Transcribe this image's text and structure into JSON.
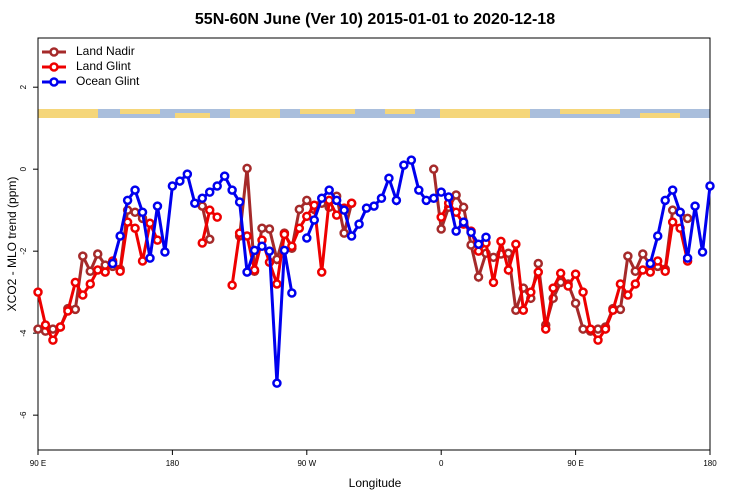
{
  "chart_data": {
    "type": "line",
    "title": "55N-60N June (Ver 10)   2015-01-01 to 2020-12-18",
    "x_label": "Longitude",
    "y_label": "XCO2 - MLO trend (ppm)",
    "legend": "top-left",
    "xlim": [
      90,
      540
    ],
    "xticks": [
      {
        "value": 90,
        "label": "90 E"
      },
      180,
      {
        "value": 270,
        "label": "90 W"
      },
      {
        "value": 360,
        "label": "0"
      },
      {
        "value": 450,
        "label": "90 E"
      },
      {
        "value": 540,
        "label": "180"
      }
    ],
    "ylim": [
      -6.85,
      3.2
    ],
    "yticks": [
      2,
      0,
      -2,
      -4,
      -6
    ],
    "x": [
      90,
      95,
      100,
      105,
      110,
      115,
      120,
      125,
      130,
      135,
      140,
      145,
      150,
      155,
      160,
      165,
      170,
      175,
      180,
      185,
      190,
      195,
      200,
      205,
      210,
      215,
      220,
      225,
      230,
      235,
      240,
      245,
      250,
      255,
      260,
      265,
      270,
      275,
      280,
      285,
      290,
      295,
      300,
      305,
      310,
      315,
      320,
      325,
      330,
      335,
      340,
      345,
      350,
      355,
      360,
      365,
      370,
      375,
      380,
      385,
      390,
      395,
      400,
      405,
      410,
      415,
      420,
      425,
      430,
      435,
      440,
      445,
      450,
      455,
      460,
      465,
      470,
      475,
      480,
      485,
      490,
      495,
      500,
      505,
      510,
      515,
      520,
      525,
      530,
      535,
      540
    ],
    "series": [
      {
        "name": "Land Nadir",
        "color": "#a52a2a",
        "values": [
          -3.9,
          -3.95,
          -3.9,
          -3.85,
          -3.4,
          -3.42,
          -2.12,
          -2.49,
          -2.07,
          -2.34,
          -2.37,
          -2.44,
          -1.0,
          -1.05,
          -1.2,
          null,
          null,
          null,
          null,
          null,
          null,
          null,
          -0.9,
          -1.71,
          null,
          null,
          null,
          -1.63,
          0.02,
          -2.49,
          -1.44,
          -1.46,
          -2.2,
          -1.56,
          -1.93,
          -0.98,
          -0.76,
          -0.98,
          -0.83,
          -0.93,
          -0.66,
          -1.56,
          -0.83,
          null,
          null,
          null,
          null,
          null,
          null,
          null,
          null,
          null,
          null,
          0.0,
          -1.46,
          -0.93,
          -0.63,
          -0.93,
          -1.85,
          -2.63,
          -2.05,
          -2.15,
          -2.07,
          -2.05,
          -3.44,
          -2.9,
          -3.15,
          -2.3,
          -3.8,
          -3.15,
          -2.76,
          -2.8,
          -3.27,
          -3.9,
          -3.95,
          -3.9,
          -3.85,
          -3.4,
          -3.42,
          -2.12,
          -2.49,
          -2.07,
          -2.34,
          -2.37,
          -2.44,
          -1.0,
          -1.05,
          -1.2,
          null,
          null,
          null
        ]
      },
      {
        "name": "Land Glint",
        "color": "#ee0000",
        "values": [
          -3.0,
          -3.8,
          -4.17,
          -3.85,
          -3.46,
          -2.76,
          -3.07,
          -2.8,
          -2.46,
          -2.51,
          -2.24,
          -2.49,
          -1.29,
          -1.44,
          -2.24,
          -1.32,
          -1.73,
          null,
          null,
          null,
          null,
          null,
          -1.8,
          -1.0,
          -1.17,
          null,
          -2.83,
          -1.56,
          -1.63,
          -2.46,
          -1.73,
          -2.27,
          -2.8,
          -1.59,
          -1.88,
          -1.44,
          -1.15,
          -0.88,
          -2.51,
          -0.76,
          -1.12,
          -0.95,
          -0.83,
          null,
          null,
          null,
          null,
          null,
          null,
          null,
          null,
          null,
          null,
          null,
          -1.17,
          -0.83,
          -1.05,
          -1.34,
          -1.51,
          -2.0,
          -1.8,
          -2.76,
          -1.76,
          -2.46,
          -1.83,
          -3.44,
          -3.0,
          -2.51,
          -3.9,
          -2.9,
          -2.54,
          -2.85,
          -2.56,
          -3.0,
          -3.9,
          -4.17,
          -3.9,
          -3.44,
          -2.8,
          -3.07,
          -2.8,
          -2.46,
          -2.51,
          -2.24,
          -2.49,
          -1.29,
          -1.44,
          -2.24,
          null,
          null,
          null
        ]
      },
      {
        "name": "Ocean Glint",
        "color": "#0000ee",
        "values": [
          null,
          null,
          null,
          null,
          null,
          null,
          null,
          null,
          null,
          null,
          -2.3,
          -1.63,
          -0.76,
          -0.51,
          -1.05,
          -2.17,
          -0.9,
          -2.02,
          -0.41,
          -0.29,
          -0.12,
          -0.83,
          -0.71,
          -0.56,
          -0.41,
          -0.17,
          -0.51,
          -0.8,
          -2.51,
          -1.98,
          -1.88,
          -2.0,
          -5.22,
          -1.98,
          -3.02,
          null,
          -1.68,
          -1.24,
          -0.71,
          -0.51,
          -0.76,
          -1.0,
          -1.63,
          -1.34,
          -0.95,
          -0.9,
          -0.71,
          -0.22,
          -0.76,
          0.1,
          0.22,
          -0.51,
          -0.76,
          -0.71,
          -0.56,
          -0.68,
          -1.51,
          -1.29,
          -1.54,
          -1.83,
          -1.66,
          null,
          null,
          null,
          null,
          null,
          null,
          null,
          null,
          null,
          null,
          null,
          null,
          null,
          null,
          null,
          null,
          null,
          null,
          null,
          null,
          null,
          -2.3,
          -1.63,
          -0.76,
          -0.51,
          -1.05,
          -2.17,
          -0.9,
          -2.02,
          -0.41
        ]
      }
    ]
  }
}
